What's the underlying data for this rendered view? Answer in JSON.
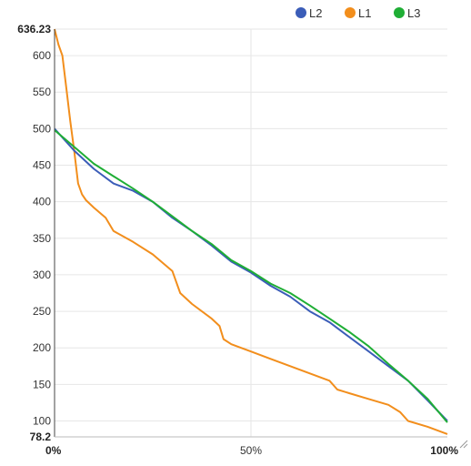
{
  "chart_data": {
    "type": "line",
    "x_unit": "%",
    "xlim": [
      0,
      100
    ],
    "ylim": [
      78.2,
      636.23
    ],
    "y_ticks": [
      100,
      150,
      200,
      250,
      300,
      350,
      400,
      450,
      500,
      550,
      600
    ],
    "y_min_label": "78.2",
    "y_max_label": "636.23",
    "x_tick_labels": [
      "0%",
      "50%",
      "100%"
    ],
    "x_ticks": [
      0,
      50,
      100
    ],
    "grid": true,
    "legend": {
      "position": "top-right"
    },
    "series": [
      {
        "name": "L2",
        "color": "#3b5db8",
        "points": [
          [
            0,
            500
          ],
          [
            5,
            470
          ],
          [
            10,
            445
          ],
          [
            15,
            425
          ],
          [
            20,
            415
          ],
          [
            25,
            400
          ],
          [
            30,
            378
          ],
          [
            35,
            360
          ],
          [
            40,
            340
          ],
          [
            45,
            318
          ],
          [
            50,
            303
          ],
          [
            55,
            285
          ],
          [
            60,
            270
          ],
          [
            65,
            250
          ],
          [
            70,
            235
          ],
          [
            75,
            215
          ],
          [
            80,
            195
          ],
          [
            85,
            175
          ],
          [
            90,
            155
          ],
          [
            95,
            128
          ],
          [
            100,
            100
          ]
        ]
      },
      {
        "name": "L1",
        "color": "#f28e1c",
        "points": [
          [
            0,
            636.23
          ],
          [
            1,
            615
          ],
          [
            2,
            600
          ],
          [
            3,
            555
          ],
          [
            4,
            510
          ],
          [
            5,
            470
          ],
          [
            6,
            425
          ],
          [
            7,
            410
          ],
          [
            8,
            402
          ],
          [
            10,
            392
          ],
          [
            13,
            378
          ],
          [
            15,
            360
          ],
          [
            20,
            345
          ],
          [
            25,
            328
          ],
          [
            30,
            305
          ],
          [
            32,
            275
          ],
          [
            35,
            260
          ],
          [
            40,
            240
          ],
          [
            42,
            230
          ],
          [
            43,
            212
          ],
          [
            45,
            205
          ],
          [
            50,
            195
          ],
          [
            55,
            185
          ],
          [
            60,
            175
          ],
          [
            65,
            165
          ],
          [
            70,
            155
          ],
          [
            72,
            143
          ],
          [
            75,
            138
          ],
          [
            80,
            130
          ],
          [
            85,
            122
          ],
          [
            88,
            112
          ],
          [
            90,
            100
          ],
          [
            95,
            92
          ],
          [
            100,
            82
          ]
        ]
      },
      {
        "name": "L3",
        "color": "#1fae35",
        "points": [
          [
            0,
            498
          ],
          [
            5,
            475
          ],
          [
            10,
            452
          ],
          [
            15,
            435
          ],
          [
            20,
            418
          ],
          [
            25,
            400
          ],
          [
            30,
            380
          ],
          [
            35,
            360
          ],
          [
            40,
            342
          ],
          [
            45,
            320
          ],
          [
            50,
            305
          ],
          [
            55,
            288
          ],
          [
            60,
            275
          ],
          [
            65,
            258
          ],
          [
            70,
            240
          ],
          [
            75,
            222
          ],
          [
            80,
            202
          ],
          [
            85,
            178
          ],
          [
            90,
            155
          ],
          [
            95,
            130
          ],
          [
            100,
            98
          ]
        ]
      }
    ]
  }
}
